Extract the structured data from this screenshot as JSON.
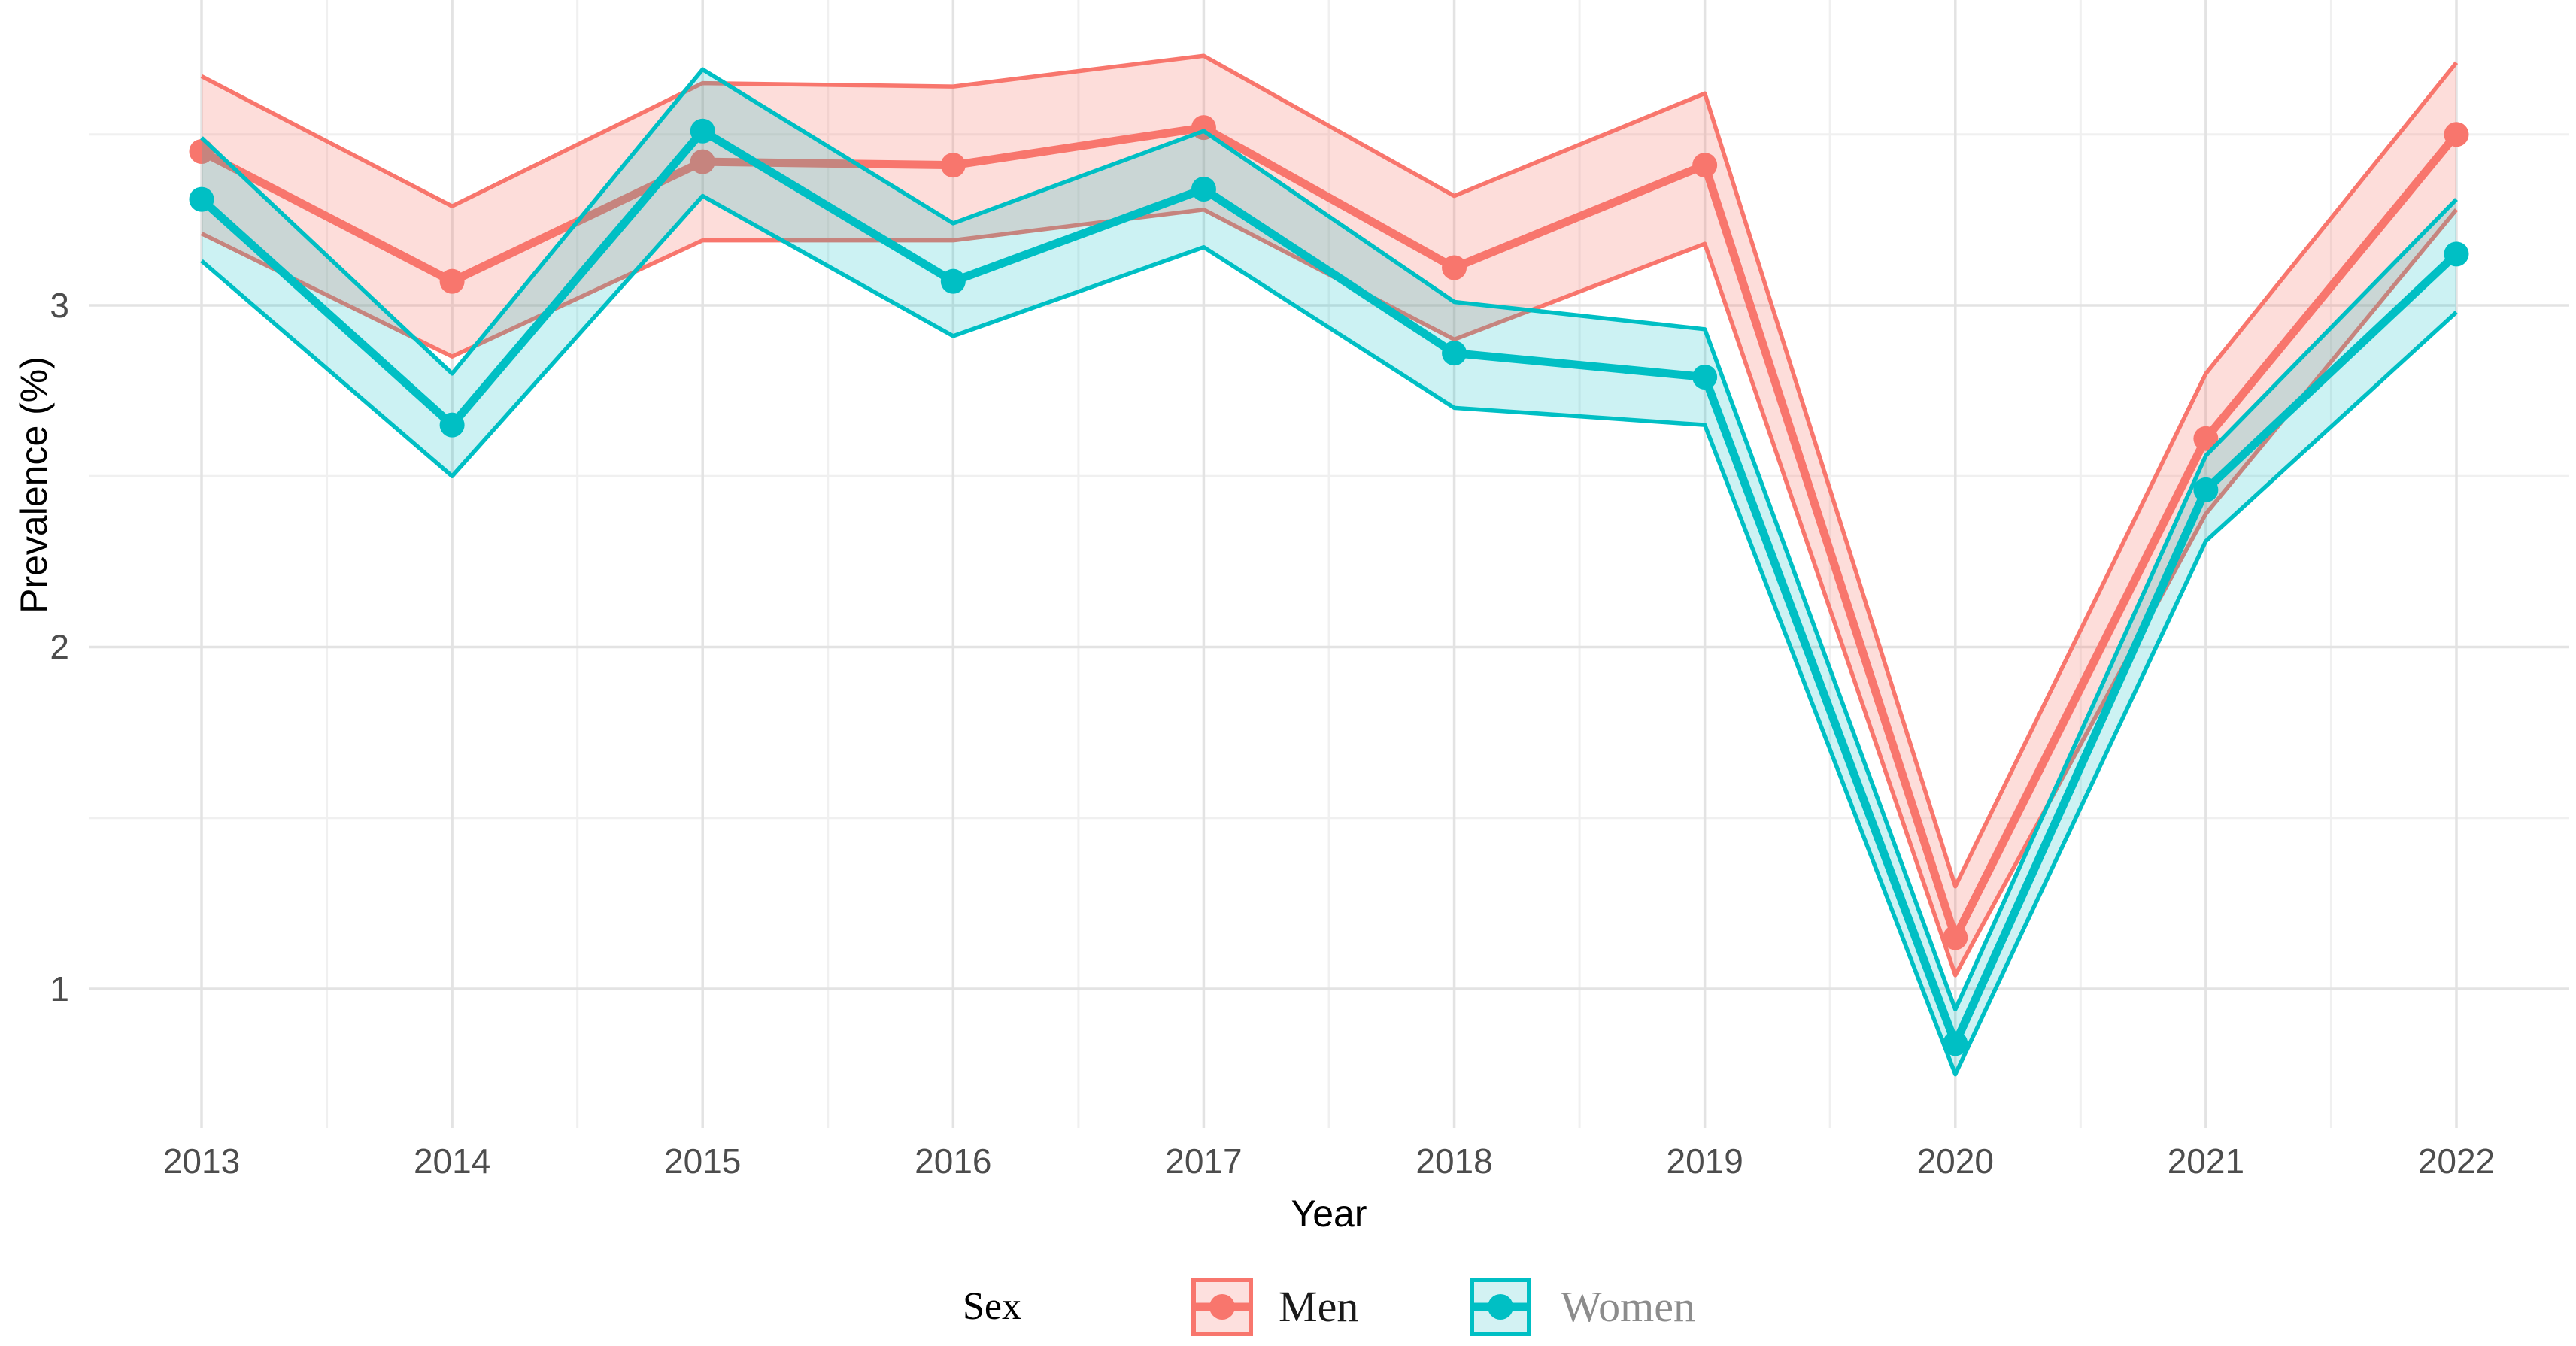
{
  "figure": {
    "background": "#ffffff",
    "legend": {
      "title": "Sex",
      "items": [
        {
          "label": "Men",
          "color": "#F8766D",
          "swatch_fill": "#FDE0DE",
          "text_color": "#1A1A1A"
        },
        {
          "label": "Women",
          "color": "#00BFC4",
          "swatch_fill": "#D3F2F3",
          "text_color": "#8C8C8C"
        }
      ]
    },
    "axis_text_color": "#4D4D4D",
    "grid_major_color": "#E3E3E3",
    "grid_minor_color": "#F0F0F0"
  },
  "chart_data": {
    "type": "line",
    "title": "",
    "xlabel": "Year",
    "ylabel": "Prevalence (%)",
    "x": [
      2013,
      2014,
      2015,
      2016,
      2017,
      2018,
      2019,
      2020,
      2021,
      2022
    ],
    "series": [
      {
        "name": "Men",
        "color": "#F8766D",
        "fill_opacity": 0.25,
        "values": [
          3.45,
          3.07,
          3.42,
          3.41,
          3.52,
          3.11,
          3.41,
          1.15,
          2.61,
          3.5
        ],
        "upper": [
          3.67,
          3.29,
          3.65,
          3.64,
          3.73,
          3.32,
          3.62,
          1.3,
          2.8,
          3.71
        ],
        "lower": [
          3.21,
          2.85,
          3.19,
          3.19,
          3.28,
          2.9,
          3.18,
          1.04,
          2.39,
          3.28
        ]
      },
      {
        "name": "Women",
        "color": "#00BFC4",
        "fill_opacity": 0.2,
        "values": [
          3.31,
          2.65,
          3.51,
          3.07,
          3.34,
          2.86,
          2.79,
          0.84,
          2.46,
          3.15
        ],
        "upper": [
          3.49,
          2.8,
          3.69,
          3.24,
          3.51,
          3.01,
          2.93,
          0.94,
          2.56,
          3.31
        ],
        "lower": [
          3.13,
          2.5,
          3.32,
          2.91,
          3.17,
          2.7,
          2.65,
          0.75,
          2.31,
          2.98
        ]
      }
    ],
    "y_major": [
      1,
      2,
      3
    ],
    "y_minor": [
      1.5,
      2.5,
      3.5
    ],
    "x_minor": [
      2013.5,
      2014.5,
      2015.5,
      2016.5,
      2017.5,
      2018.5,
      2019.5,
      2020.5,
      2021.5
    ],
    "ylim": [
      0.59,
      3.89
    ],
    "xlim": [
      2012.55,
      2022.45
    ],
    "grid": true,
    "legend_position": "bottom",
    "ribbon": "confidence band"
  }
}
